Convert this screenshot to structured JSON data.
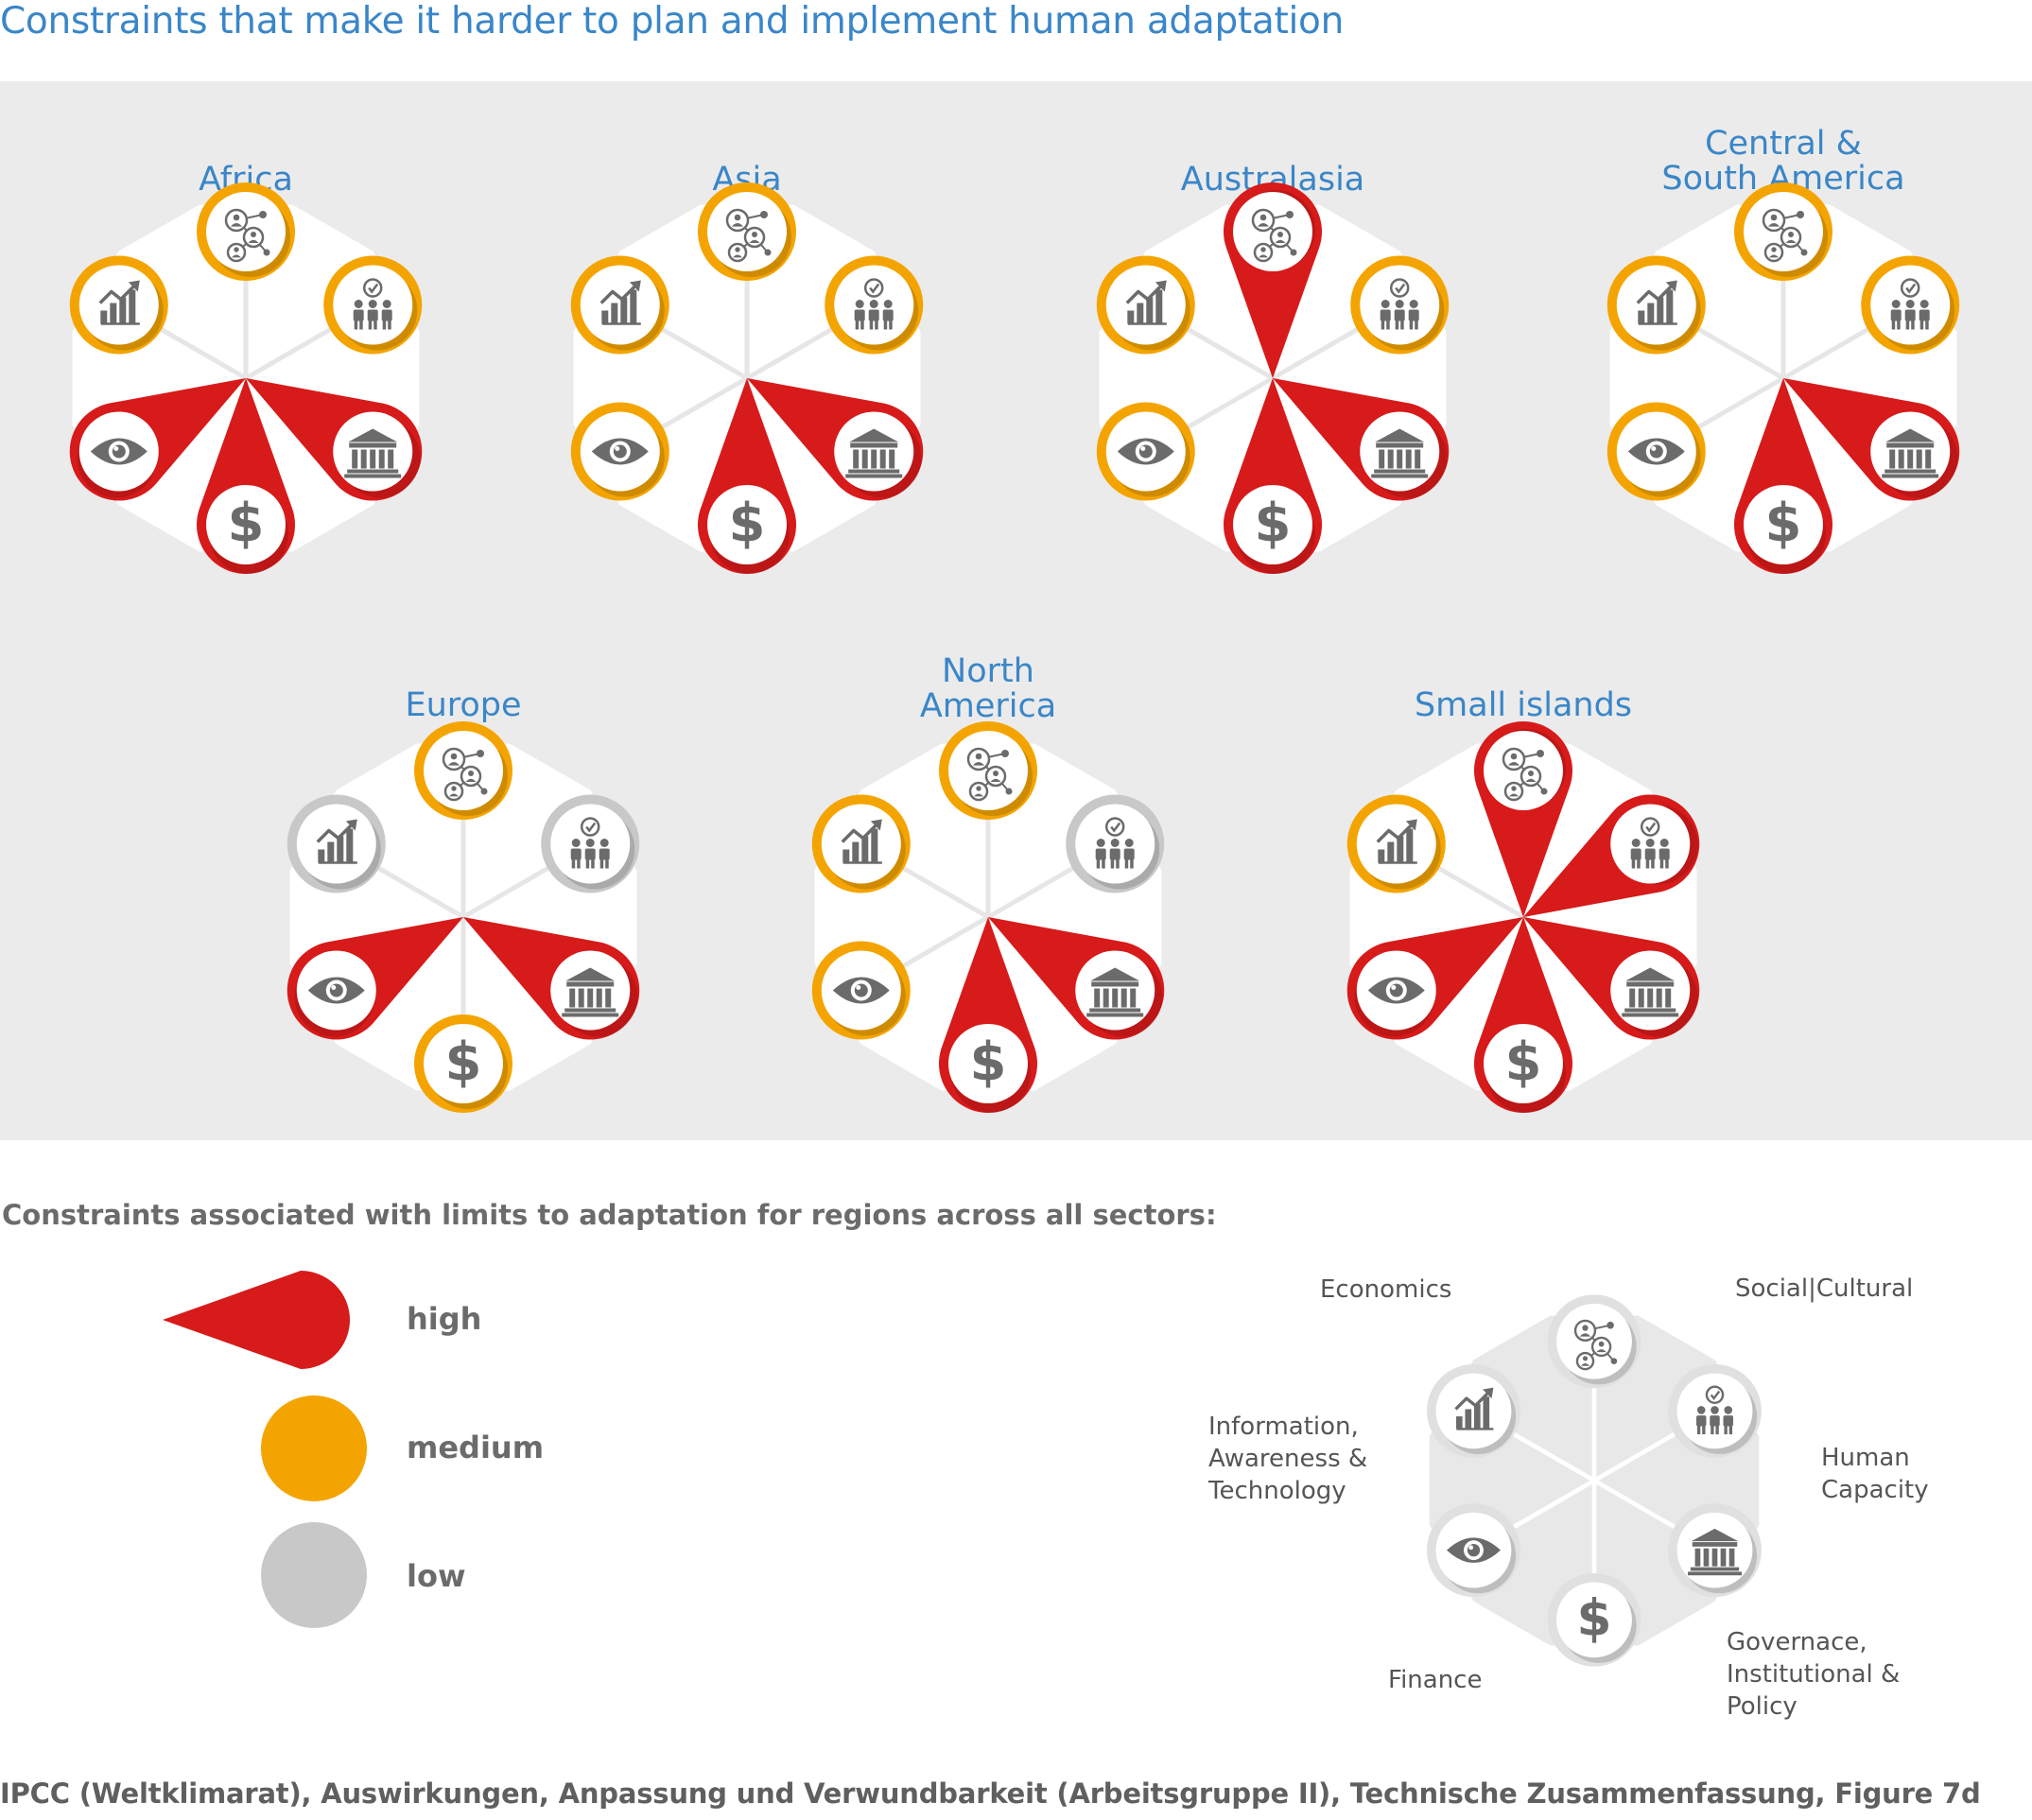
{
  "title": "Constraints that make it harder to plan and implement human adaptation",
  "levels": {
    "high": {
      "label": "high",
      "color": "#d71a1a"
    },
    "medium": {
      "label": "medium",
      "color": "#f4a400"
    },
    "low": {
      "label": "low",
      "color": "#c8c8c8"
    }
  },
  "icon_color": "#6b6b6b",
  "categories": [
    {
      "key": "economics",
      "icon": "chart-up-icon",
      "label": "Economics"
    },
    {
      "key": "social",
      "icon": "social-network-icon",
      "label": "Social|Cultural"
    },
    {
      "key": "human",
      "icon": "people-check-icon",
      "label": "Human Capacity"
    },
    {
      "key": "governance",
      "icon": "institution-icon",
      "label": "Governace,\nInstitutional &\nPolicy"
    },
    {
      "key": "finance",
      "icon": "dollar-icon",
      "label": "Finance"
    },
    {
      "key": "information",
      "icon": "eye-icon",
      "label": "Information,\nAwareness &\nTechnology"
    }
  ],
  "regions": [
    {
      "name": "Africa",
      "levels": {
        "economics": "medium",
        "social": "medium",
        "human": "medium",
        "governance": "high",
        "finance": "high",
        "information": "high"
      }
    },
    {
      "name": "Asia",
      "levels": {
        "economics": "medium",
        "social": "medium",
        "human": "medium",
        "governance": "high",
        "finance": "high",
        "information": "medium"
      }
    },
    {
      "name": "Australasia",
      "levels": {
        "economics": "medium",
        "social": "high",
        "human": "medium",
        "governance": "high",
        "finance": "high",
        "information": "medium"
      }
    },
    {
      "name": "Central &\nSouth America",
      "levels": {
        "economics": "medium",
        "social": "medium",
        "human": "medium",
        "governance": "high",
        "finance": "high",
        "information": "medium"
      }
    },
    {
      "name": "Europe",
      "levels": {
        "economics": "low",
        "social": "medium",
        "human": "low",
        "governance": "high",
        "finance": "medium",
        "information": "high"
      }
    },
    {
      "name": "North\nAmerica",
      "levels": {
        "economics": "medium",
        "social": "medium",
        "human": "low",
        "governance": "high",
        "finance": "high",
        "information": "medium"
      }
    },
    {
      "name": "Small islands",
      "levels": {
        "economics": "medium",
        "social": "high",
        "human": "high",
        "governance": "high",
        "finance": "high",
        "information": "high"
      }
    }
  ],
  "legend": {
    "heading": "Constraints associated with limits to adaptation for regions across all sectors:"
  },
  "source": "IPCC (Weltklimarat), Auswirkungen, Anpassung und Verwundbarkeit (Arbeitsgruppe II), Technische Zusammenfassung, Figure 7d"
}
